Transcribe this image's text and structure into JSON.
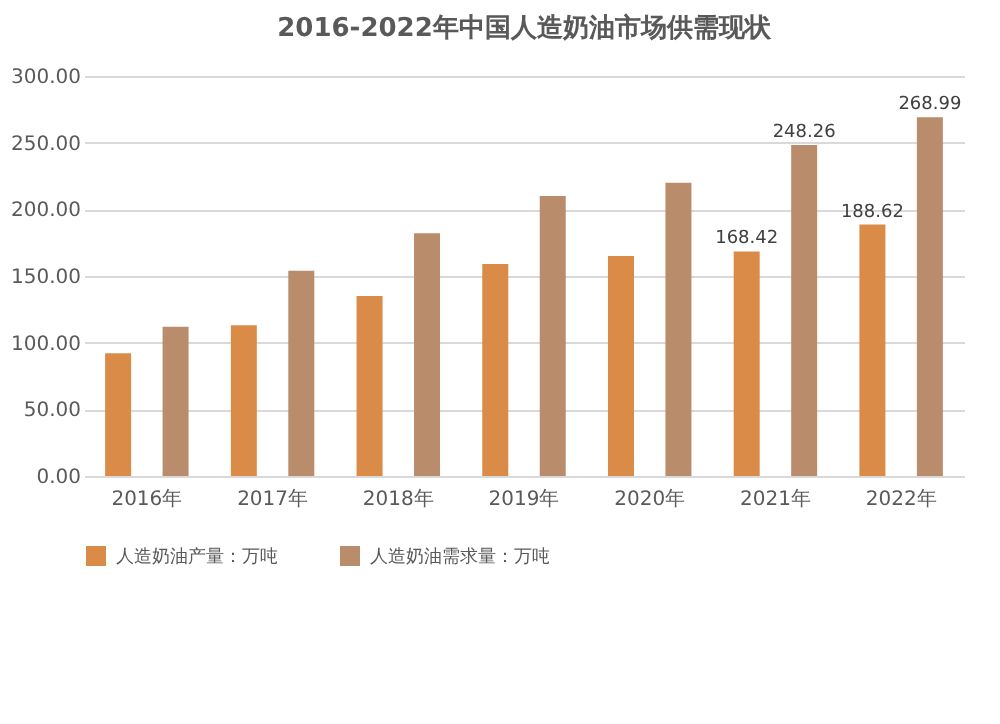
{
  "chart_data": {
    "type": "bar",
    "title": "2016-2022年中国人造奶油市场供需现状",
    "categories": [
      "2016年",
      "2017年",
      "2018年",
      "2019年",
      "2020年",
      "2021年",
      "2022年"
    ],
    "series": [
      {
        "name": "人造奶油产量：万吨",
        "color": "#d98b47",
        "values": [
          92,
          113,
          135,
          159,
          165,
          168.42,
          188.62
        ],
        "value_labels": [
          null,
          null,
          null,
          null,
          null,
          "168.42",
          "188.62"
        ]
      },
      {
        "name": "人造奶油需求量：万吨",
        "color": "#b98c6c",
        "values": [
          112,
          154,
          182,
          210,
          220,
          248.26,
          268.99
        ],
        "value_labels": [
          null,
          null,
          null,
          null,
          null,
          "248.26",
          "268.99"
        ]
      }
    ],
    "ylim": [
      0,
      300
    ],
    "yticks": [
      {
        "value": 0,
        "label": "0.00"
      },
      {
        "value": 50,
        "label": "50.00"
      },
      {
        "value": 100,
        "label": "100.00"
      },
      {
        "value": 150,
        "label": "150.00"
      },
      {
        "value": 200,
        "label": "200.00"
      },
      {
        "value": 250,
        "label": "250.00"
      },
      {
        "value": 300,
        "label": "300.00"
      }
    ],
    "grid": "y",
    "legend": "bottom"
  }
}
